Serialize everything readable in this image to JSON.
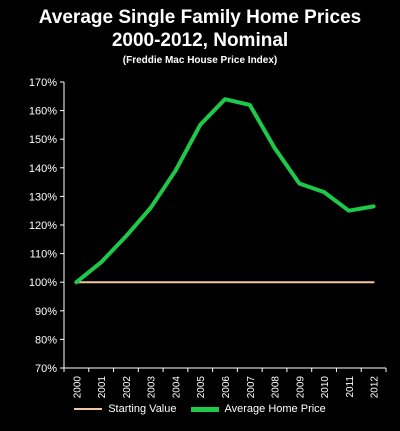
{
  "chart_data": {
    "type": "line",
    "title_lines": [
      "Average Single Family Home Prices",
      "2000-2012, Nominal"
    ],
    "subtitle": "(Freddie Mac House Price Index)",
    "categories": [
      "2000",
      "2001",
      "2002",
      "2003",
      "2004",
      "2005",
      "2006",
      "2007",
      "2008",
      "2009",
      "2010",
      "2011",
      "2012"
    ],
    "series": [
      {
        "name": "Starting Value",
        "color": "#f5c6a0",
        "values": [
          100,
          100,
          100,
          100,
          100,
          100,
          100,
          100,
          100,
          100,
          100,
          100,
          100
        ]
      },
      {
        "name": "Average Home Price",
        "color": "#1ec94a",
        "values": [
          100,
          107,
          116,
          126,
          139,
          155,
          164,
          162,
          147,
          134.5,
          131.5,
          125,
          126.5
        ]
      }
    ],
    "y_ticks": [
      "70%",
      "80%",
      "90%",
      "100%",
      "110%",
      "120%",
      "130%",
      "140%",
      "150%",
      "160%",
      "170%"
    ],
    "ylim": [
      70,
      170
    ],
    "y_unit": "%",
    "grid": false,
    "legend_position": "bottom"
  }
}
